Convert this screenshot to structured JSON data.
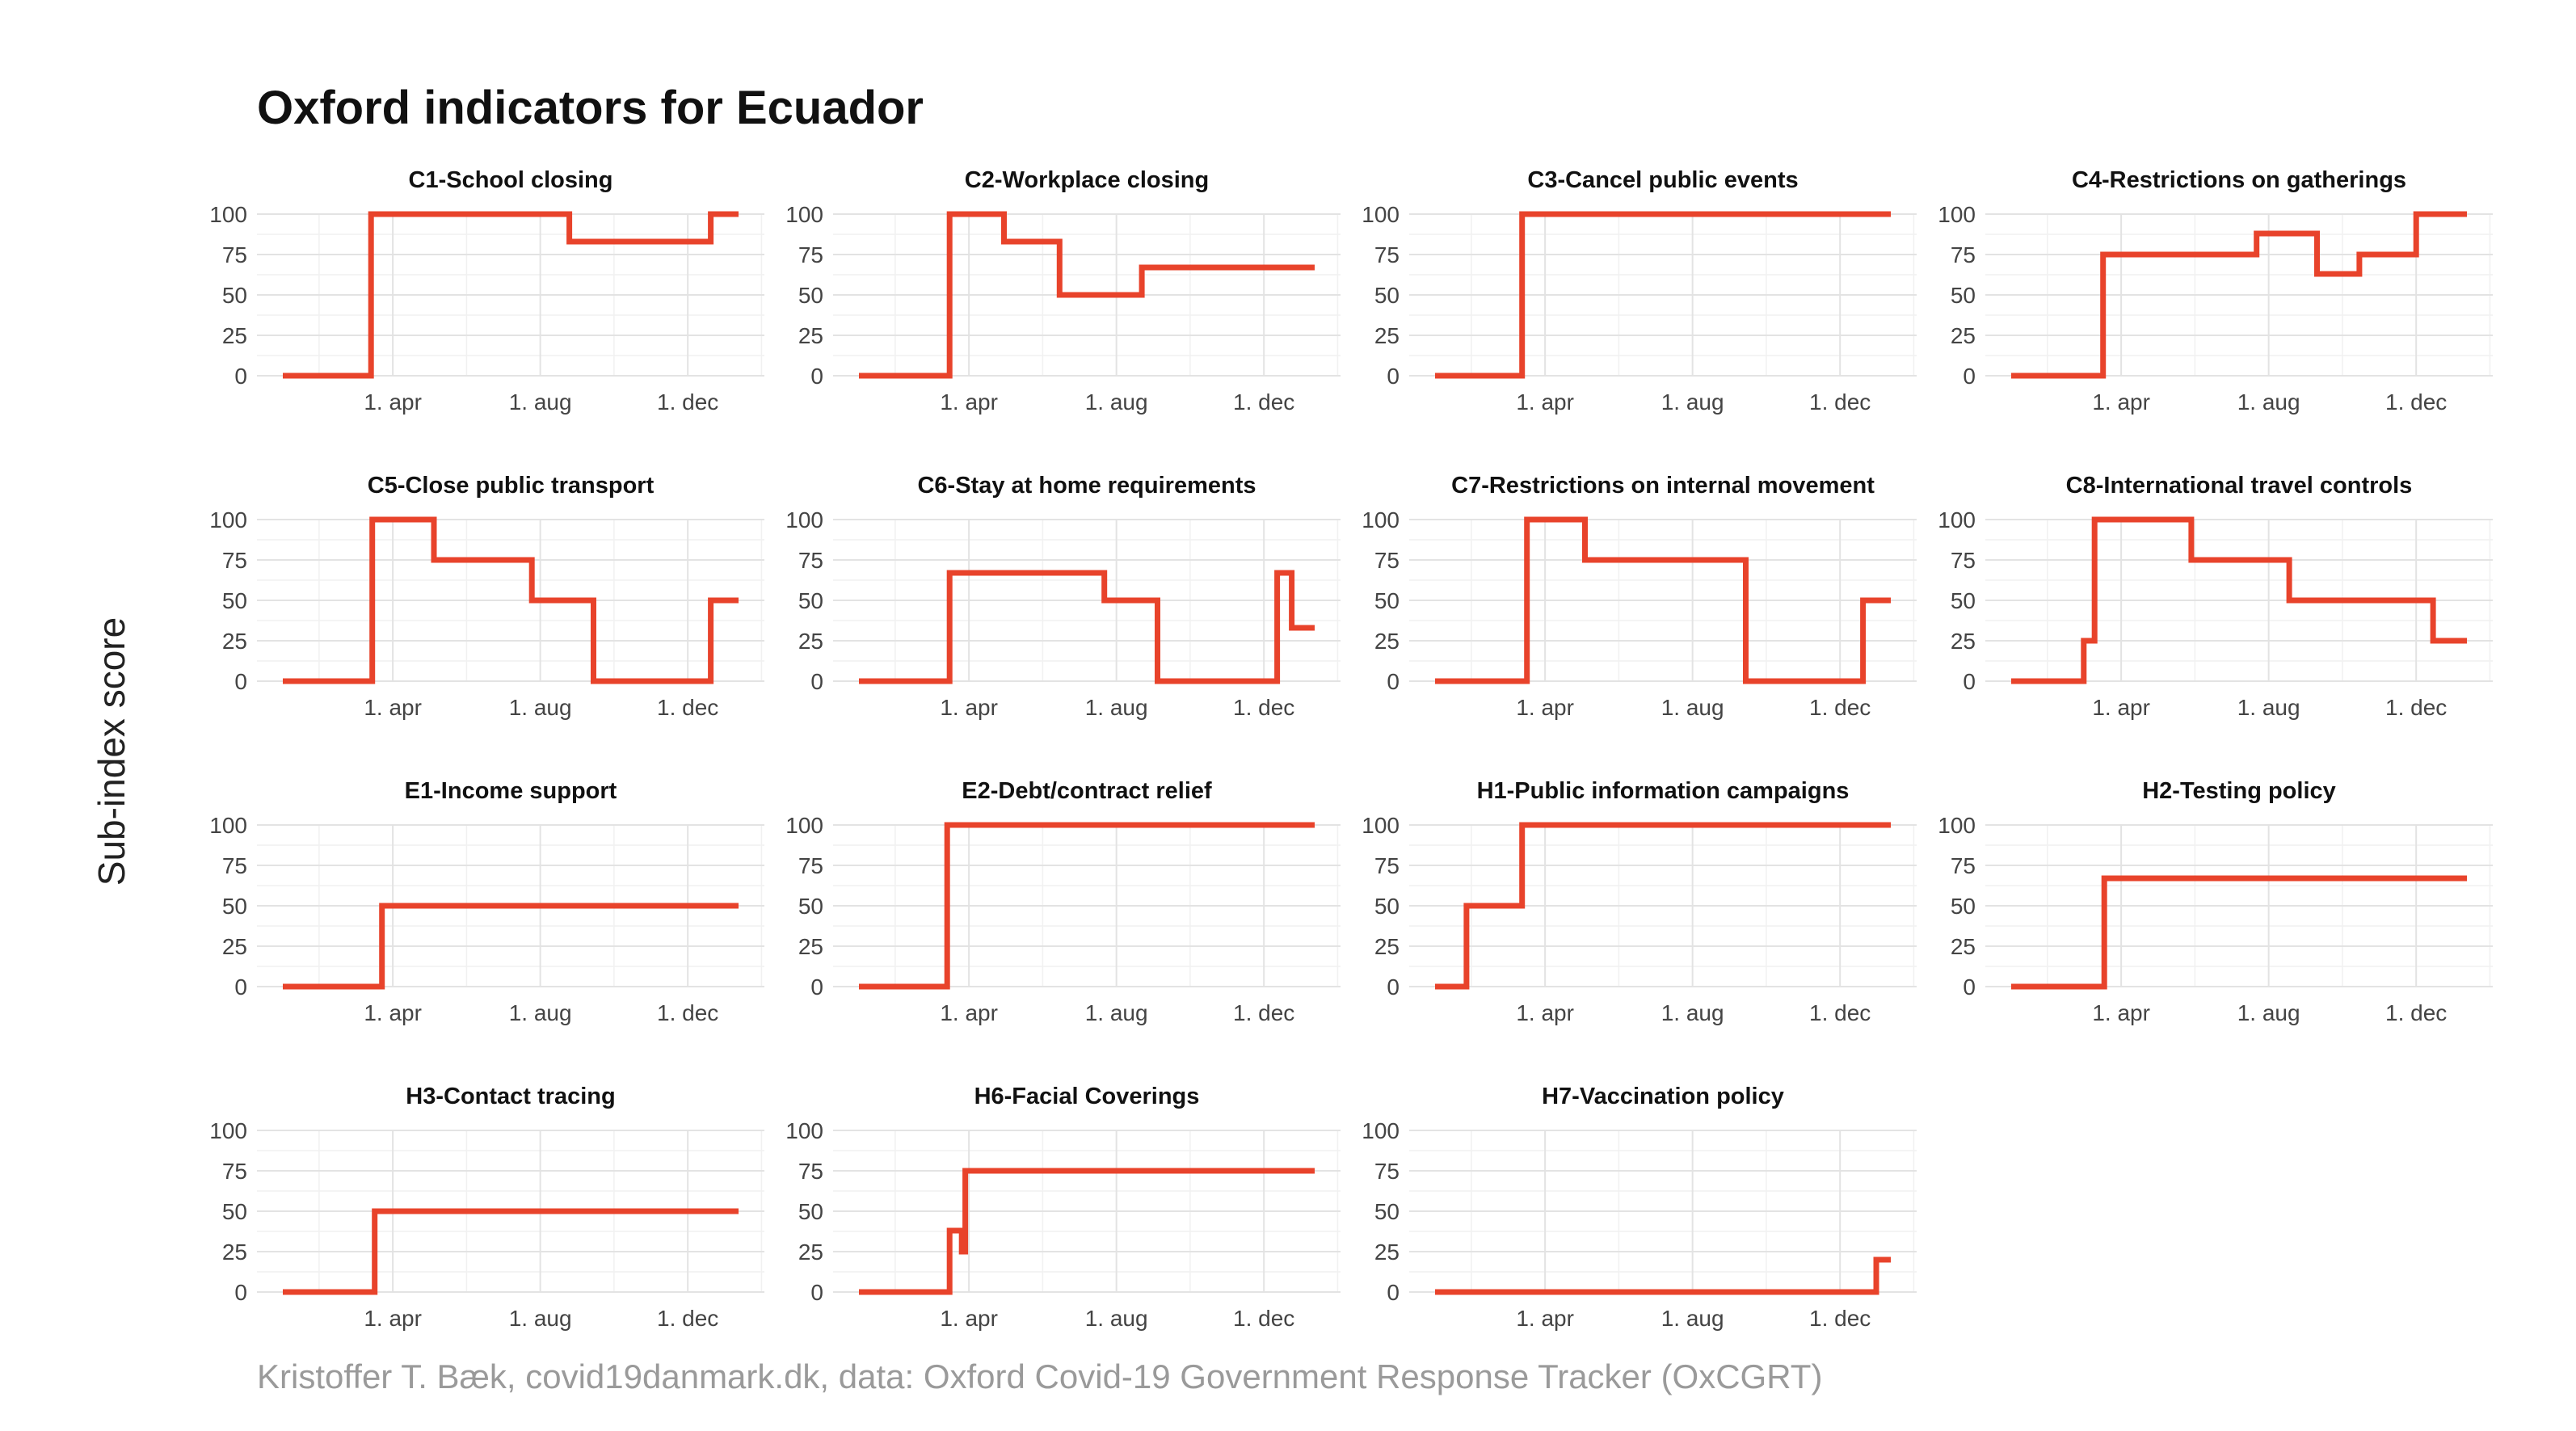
{
  "title": "Oxford indicators for Ecuador",
  "ylabel": "Sub-index score",
  "caption": "Kristoffer T. Bæk, covid19danmark.dk, data: Oxford Covid-19 Government Response Tracker (OxCGRT)",
  "colors": {
    "series": "#e8432b",
    "grid": "#e3e3e3",
    "text": "#111111",
    "caption": "#9a9a9a"
  },
  "chart_data": [
    {
      "type": "line",
      "title": "C1-School closing",
      "xlim": [
        "2020-01-01",
        "2021-01-12"
      ],
      "ylim": [
        0,
        100
      ],
      "xticks": [
        "2020-04-01",
        "2020-08-01",
        "2020-12-01"
      ],
      "xtick_labels": [
        "1. apr",
        "1. aug",
        "1. dec"
      ],
      "yticks": [
        0,
        25,
        50,
        75,
        100
      ],
      "series": [
        {
          "x": [
            "2020-01-01",
            "2020-03-14",
            "2020-03-14",
            "2020-08-25",
            "2020-08-25",
            "2020-12-20",
            "2020-12-20",
            "2021-01-12"
          ],
          "y": [
            0,
            0,
            100,
            100,
            83,
            83,
            100,
            100
          ]
        }
      ]
    },
    {
      "type": "line",
      "title": "C2-Workplace closing",
      "xlim": [
        "2020-01-01",
        "2021-01-12"
      ],
      "ylim": [
        0,
        100
      ],
      "xticks": [
        "2020-04-01",
        "2020-08-01",
        "2020-12-01"
      ],
      "xtick_labels": [
        "1. apr",
        "1. aug",
        "1. dec"
      ],
      "yticks": [
        0,
        25,
        50,
        75,
        100
      ],
      "series": [
        {
          "x": [
            "2020-01-01",
            "2020-03-16",
            "2020-03-16",
            "2020-04-30",
            "2020-04-30",
            "2020-06-15",
            "2020-06-15",
            "2020-08-22",
            "2020-08-22",
            "2021-01-12"
          ],
          "y": [
            0,
            0,
            100,
            100,
            83,
            83,
            50,
            50,
            67,
            67
          ]
        }
      ]
    },
    {
      "type": "line",
      "title": "C3-Cancel public events",
      "xlim": [
        "2020-01-01",
        "2021-01-12"
      ],
      "ylim": [
        0,
        100
      ],
      "xticks": [
        "2020-04-01",
        "2020-08-01",
        "2020-12-01"
      ],
      "xtick_labels": [
        "1. apr",
        "1. aug",
        "1. dec"
      ],
      "yticks": [
        0,
        25,
        50,
        75,
        100
      ],
      "series": [
        {
          "x": [
            "2020-01-01",
            "2020-03-13",
            "2020-03-13",
            "2021-01-12"
          ],
          "y": [
            0,
            0,
            100,
            100
          ]
        }
      ]
    },
    {
      "type": "line",
      "title": "C4-Restrictions on gatherings",
      "xlim": [
        "2020-01-01",
        "2021-01-12"
      ],
      "ylim": [
        0,
        100
      ],
      "xticks": [
        "2020-04-01",
        "2020-08-01",
        "2020-12-01"
      ],
      "xtick_labels": [
        "1. apr",
        "1. aug",
        "1. dec"
      ],
      "yticks": [
        0,
        25,
        50,
        75,
        100
      ],
      "series": [
        {
          "x": [
            "2020-01-01",
            "2020-03-17",
            "2020-03-17",
            "2020-07-22",
            "2020-07-22",
            "2020-09-10",
            "2020-09-10",
            "2020-10-15",
            "2020-10-15",
            "2020-12-01",
            "2020-12-01",
            "2021-01-12"
          ],
          "y": [
            0,
            0,
            75,
            75,
            88,
            88,
            63,
            63,
            75,
            75,
            100,
            100
          ]
        }
      ]
    },
    {
      "type": "line",
      "title": "C5-Close public transport",
      "xlim": [
        "2020-01-01",
        "2021-01-12"
      ],
      "ylim": [
        0,
        100
      ],
      "xticks": [
        "2020-04-01",
        "2020-08-01",
        "2020-12-01"
      ],
      "xtick_labels": [
        "1. apr",
        "1. aug",
        "1. dec"
      ],
      "yticks": [
        0,
        25,
        50,
        75,
        100
      ],
      "series": [
        {
          "x": [
            "2020-01-01",
            "2020-03-15",
            "2020-03-15",
            "2020-05-05",
            "2020-05-05",
            "2020-07-25",
            "2020-07-25",
            "2020-09-14",
            "2020-09-14",
            "2020-12-20",
            "2020-12-20",
            "2021-01-12"
          ],
          "y": [
            0,
            0,
            100,
            100,
            75,
            75,
            50,
            50,
            0,
            0,
            50,
            50
          ]
        }
      ]
    },
    {
      "type": "line",
      "title": "C6-Stay at home requirements",
      "xlim": [
        "2020-01-01",
        "2021-01-12"
      ],
      "ylim": [
        0,
        100
      ],
      "xticks": [
        "2020-04-01",
        "2020-08-01",
        "2020-12-01"
      ],
      "xtick_labels": [
        "1. apr",
        "1. aug",
        "1. dec"
      ],
      "yticks": [
        0,
        25,
        50,
        75,
        100
      ],
      "series": [
        {
          "x": [
            "2020-01-01",
            "2020-03-16",
            "2020-03-16",
            "2020-07-22",
            "2020-07-22",
            "2020-09-04",
            "2020-09-04",
            "2020-12-12",
            "2020-12-12",
            "2020-12-24",
            "2020-12-24",
            "2021-01-12"
          ],
          "y": [
            0,
            0,
            67,
            67,
            50,
            50,
            0,
            0,
            67,
            67,
            33,
            33
          ]
        }
      ]
    },
    {
      "type": "line",
      "title": "C7-Restrictions on internal movement",
      "xlim": [
        "2020-01-01",
        "2021-01-12"
      ],
      "ylim": [
        0,
        100
      ],
      "xticks": [
        "2020-04-01",
        "2020-08-01",
        "2020-12-01"
      ],
      "xtick_labels": [
        "1. apr",
        "1. aug",
        "1. dec"
      ],
      "yticks": [
        0,
        25,
        50,
        75,
        100
      ],
      "series": [
        {
          "x": [
            "2020-01-01",
            "2020-03-17",
            "2020-03-17",
            "2020-05-04",
            "2020-05-04",
            "2020-09-14",
            "2020-09-14",
            "2020-12-20",
            "2020-12-20",
            "2021-01-12"
          ],
          "y": [
            0,
            0,
            100,
            100,
            75,
            75,
            0,
            0,
            50,
            50
          ]
        }
      ]
    },
    {
      "type": "line",
      "title": "C8-International travel controls",
      "xlim": [
        "2020-01-01",
        "2021-01-12"
      ],
      "ylim": [
        0,
        100
      ],
      "xticks": [
        "2020-04-01",
        "2020-08-01",
        "2020-12-01"
      ],
      "xtick_labels": [
        "1. apr",
        "1. aug",
        "1. dec"
      ],
      "yticks": [
        0,
        25,
        50,
        75,
        100
      ],
      "series": [
        {
          "x": [
            "2020-01-01",
            "2020-03-01",
            "2020-03-01",
            "2020-03-10",
            "2020-03-10",
            "2020-05-29",
            "2020-05-29",
            "2020-08-18",
            "2020-08-18",
            "2020-12-15",
            "2020-12-15",
            "2021-01-12"
          ],
          "y": [
            0,
            0,
            25,
            25,
            100,
            100,
            75,
            75,
            50,
            50,
            25,
            25
          ]
        }
      ]
    },
    {
      "type": "line",
      "title": "E1-Income support",
      "xlim": [
        "2020-01-01",
        "2021-01-12"
      ],
      "ylim": [
        0,
        100
      ],
      "xticks": [
        "2020-04-01",
        "2020-08-01",
        "2020-12-01"
      ],
      "xtick_labels": [
        "1. apr",
        "1. aug",
        "1. dec"
      ],
      "yticks": [
        0,
        25,
        50,
        75,
        100
      ],
      "series": [
        {
          "x": [
            "2020-01-01",
            "2020-03-23",
            "2020-03-23",
            "2021-01-12"
          ],
          "y": [
            0,
            0,
            50,
            50
          ]
        }
      ]
    },
    {
      "type": "line",
      "title": "E2-Debt/contract relief",
      "xlim": [
        "2020-01-01",
        "2021-01-12"
      ],
      "ylim": [
        0,
        100
      ],
      "xticks": [
        "2020-04-01",
        "2020-08-01",
        "2020-12-01"
      ],
      "xtick_labels": [
        "1. apr",
        "1. aug",
        "1. dec"
      ],
      "yticks": [
        0,
        25,
        50,
        75,
        100
      ],
      "series": [
        {
          "x": [
            "2020-01-01",
            "2020-03-14",
            "2020-03-14",
            "2021-01-12"
          ],
          "y": [
            0,
            0,
            100,
            100
          ]
        }
      ]
    },
    {
      "type": "line",
      "title": "H1-Public information campaigns",
      "xlim": [
        "2020-01-01",
        "2021-01-12"
      ],
      "ylim": [
        0,
        100
      ],
      "xticks": [
        "2020-04-01",
        "2020-08-01",
        "2020-12-01"
      ],
      "xtick_labels": [
        "1. apr",
        "1. aug",
        "1. dec"
      ],
      "yticks": [
        0,
        25,
        50,
        75,
        100
      ],
      "series": [
        {
          "x": [
            "2020-01-01",
            "2020-01-27",
            "2020-01-27",
            "2020-03-13",
            "2020-03-13",
            "2021-01-12"
          ],
          "y": [
            0,
            0,
            50,
            50,
            100,
            100
          ]
        }
      ]
    },
    {
      "type": "line",
      "title": "H2-Testing policy",
      "xlim": [
        "2020-01-01",
        "2021-01-12"
      ],
      "ylim": [
        0,
        100
      ],
      "xticks": [
        "2020-04-01",
        "2020-08-01",
        "2020-12-01"
      ],
      "xtick_labels": [
        "1. apr",
        "1. aug",
        "1. dec"
      ],
      "yticks": [
        0,
        25,
        50,
        75,
        100
      ],
      "series": [
        {
          "x": [
            "2020-01-01",
            "2020-03-18",
            "2020-03-18",
            "2021-01-12"
          ],
          "y": [
            0,
            0,
            67,
            67
          ]
        }
      ]
    },
    {
      "type": "line",
      "title": "H3-Contact tracing",
      "xlim": [
        "2020-01-01",
        "2021-01-12"
      ],
      "ylim": [
        0,
        100
      ],
      "xticks": [
        "2020-04-01",
        "2020-08-01",
        "2020-12-01"
      ],
      "xtick_labels": [
        "1. apr",
        "1. aug",
        "1. dec"
      ],
      "yticks": [
        0,
        25,
        50,
        75,
        100
      ],
      "series": [
        {
          "x": [
            "2020-01-01",
            "2020-03-17",
            "2020-03-17",
            "2021-01-12"
          ],
          "y": [
            0,
            0,
            50,
            50
          ]
        }
      ]
    },
    {
      "type": "line",
      "title": "H6-Facial Coverings",
      "xlim": [
        "2020-01-01",
        "2021-01-12"
      ],
      "ylim": [
        0,
        100
      ],
      "xticks": [
        "2020-04-01",
        "2020-08-01",
        "2020-12-01"
      ],
      "xtick_labels": [
        "1. apr",
        "1. aug",
        "1. dec"
      ],
      "yticks": [
        0,
        25,
        50,
        75,
        100
      ],
      "series": [
        {
          "x": [
            "2020-01-01",
            "2020-03-16",
            "2020-03-16",
            "2020-03-26",
            "2020-03-26",
            "2020-03-29",
            "2020-03-29",
            "2021-01-12"
          ],
          "y": [
            0,
            0,
            38,
            38,
            25,
            25,
            75,
            75
          ]
        }
      ]
    },
    {
      "type": "line",
      "title": "H7-Vaccination policy",
      "xlim": [
        "2020-01-01",
        "2021-01-12"
      ],
      "ylim": [
        0,
        100
      ],
      "xticks": [
        "2020-04-01",
        "2020-08-01",
        "2020-12-01"
      ],
      "xtick_labels": [
        "1. apr",
        "1. aug",
        "1. dec"
      ],
      "yticks": [
        0,
        25,
        50,
        75,
        100
      ],
      "series": [
        {
          "x": [
            "2020-01-01",
            "2020-12-31",
            "2020-12-31",
            "2021-01-12"
          ],
          "y": [
            0,
            0,
            20,
            20
          ]
        }
      ]
    }
  ]
}
